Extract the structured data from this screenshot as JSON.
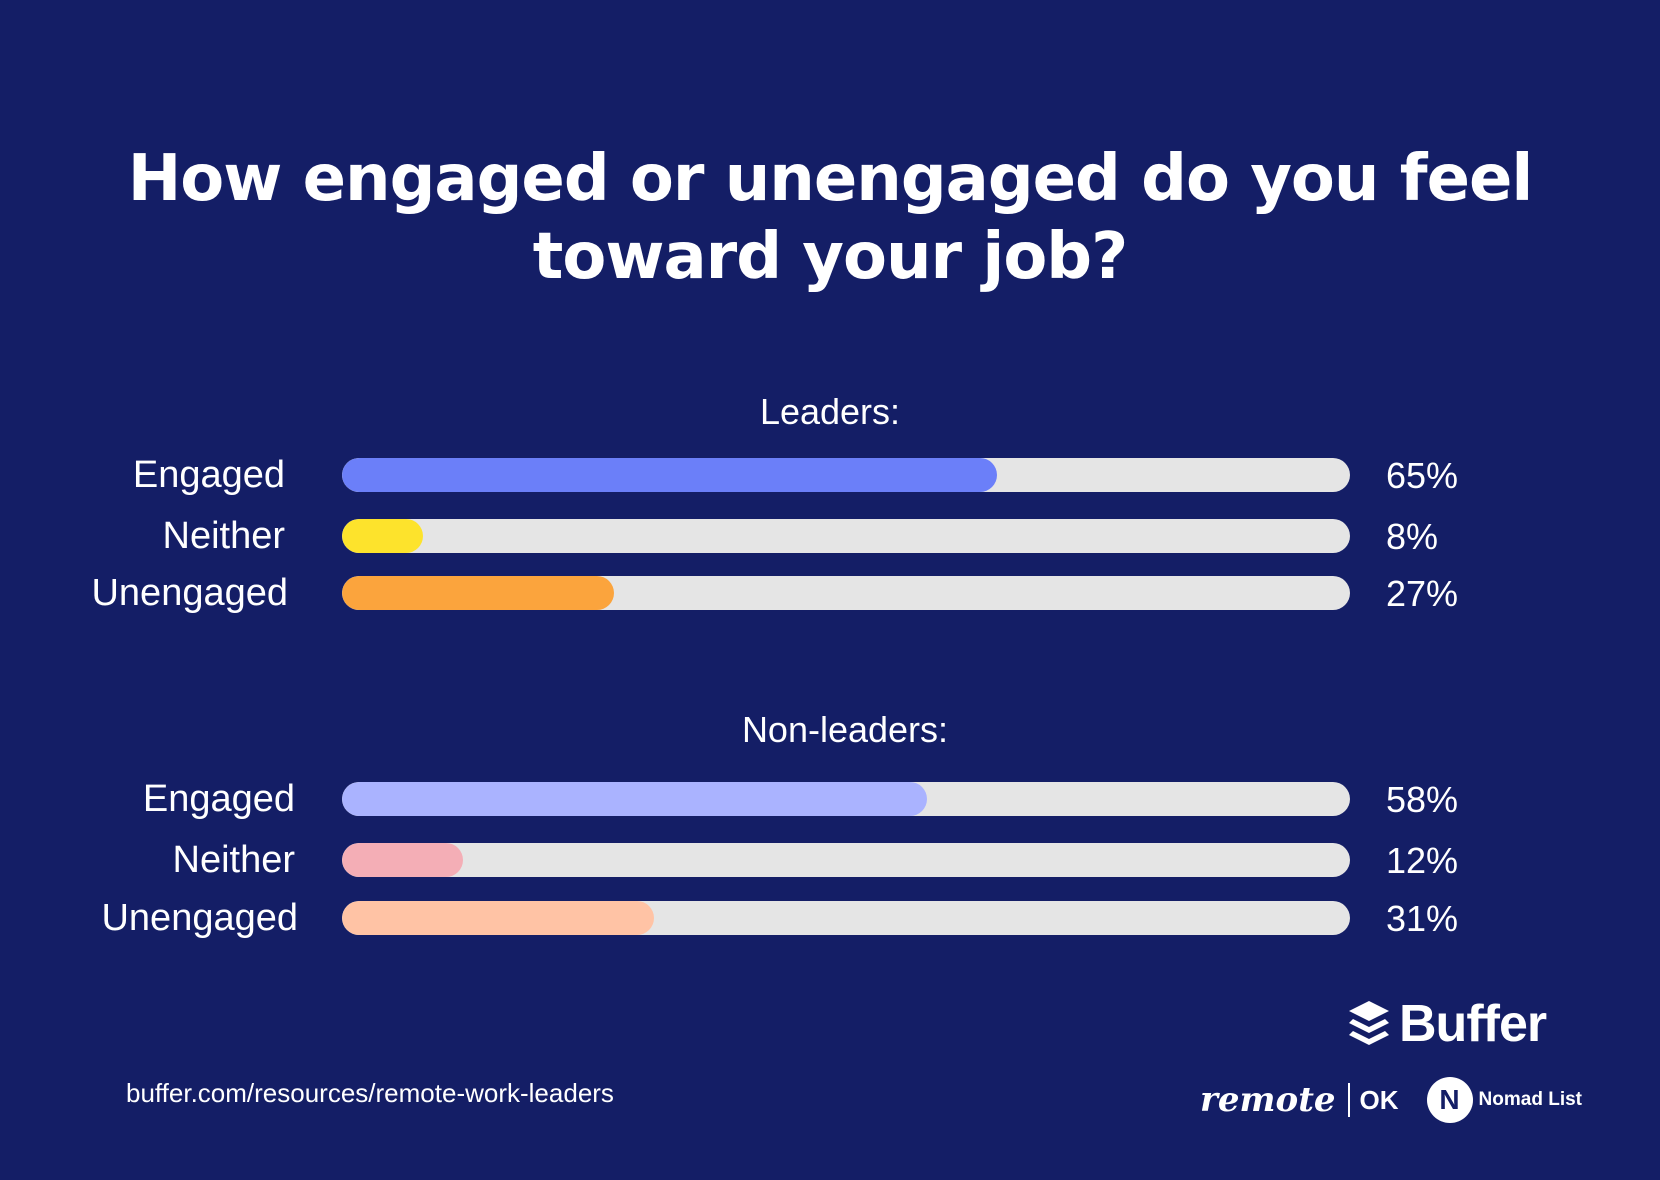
{
  "chart_data": {
    "type": "bar",
    "title": "How engaged or unengaged do you feel toward your job?",
    "title_lines": [
      "How engaged or unengaged do you feel",
      "toward your job?"
    ],
    "xlim": [
      0,
      100
    ],
    "unit": "%",
    "groups": [
      {
        "name": "Leaders:",
        "categories": [
          "Engaged",
          "Neither",
          "Unengaged"
        ],
        "values": [
          65,
          8,
          27
        ],
        "labels": [
          "65%",
          "8%",
          "27%"
        ],
        "colors": [
          "#6b7ff9",
          "#fde32c",
          "#fba43d"
        ]
      },
      {
        "name": "Non-leaders:",
        "categories": [
          "Engaged",
          "Neither",
          "Unengaged"
        ],
        "values": [
          58,
          12,
          31
        ],
        "labels": [
          "58%",
          "12%",
          "31%"
        ],
        "colors": [
          "#aab3ff",
          "#f4aeb6",
          "#ffc3a5"
        ]
      }
    ],
    "track_color": "#e5e5e5"
  },
  "footer": {
    "source": "buffer.com/resources/remote-work-leaders",
    "brand": "Buffer",
    "partner_remote": "remote",
    "partner_ok": "OK",
    "partner_nomad": "Nomad List"
  },
  "colors": {
    "background": "#141e66",
    "text": "#ffffff"
  }
}
